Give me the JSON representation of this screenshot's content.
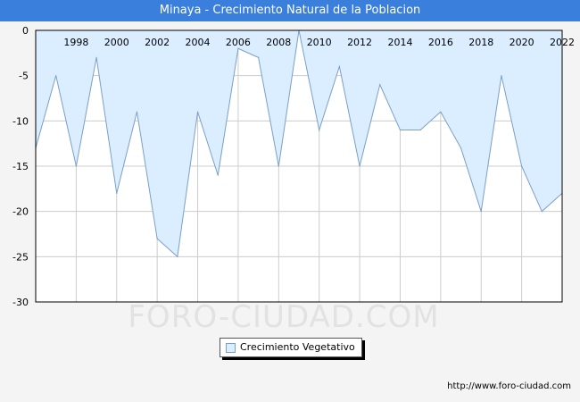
{
  "header": {
    "title": "Minaya - Crecimiento Natural de la Poblacion"
  },
  "watermark": "FORO-CIUDAD.COM",
  "source_url": "http://www.foro-ciudad.com",
  "colors": {
    "title_bar": "#3a7fdb",
    "area_fill": "#dbeeff",
    "line": "#7a9fc8",
    "grid": "#cccccc"
  },
  "chart_data": {
    "type": "area",
    "title": "Minaya - Crecimiento Natural de la Poblacion",
    "xlabel": "",
    "ylabel": "",
    "xlim": [
      1996,
      2022
    ],
    "ylim": [
      -30,
      0
    ],
    "x_ticks": [
      1998,
      2000,
      2002,
      2004,
      2006,
      2008,
      2010,
      2012,
      2014,
      2016,
      2018,
      2020,
      2022
    ],
    "y_ticks": [
      0,
      -5,
      -10,
      -15,
      -20,
      -25,
      -30
    ],
    "grid": true,
    "legend_position": "bottom-center",
    "series": [
      {
        "name": "Crecimiento Vegetativo",
        "x": [
          1996,
          1997,
          1998,
          1999,
          2000,
          2001,
          2002,
          2003,
          2004,
          2005,
          2006,
          2007,
          2008,
          2009,
          2010,
          2011,
          2012,
          2013,
          2014,
          2015,
          2016,
          2017,
          2018,
          2019,
          2020,
          2021,
          2022
        ],
        "values": [
          -13,
          -5,
          -15,
          -3,
          -18,
          -9,
          -23,
          -25,
          -9,
          -16,
          -2,
          -3,
          -15,
          0,
          -11,
          -4,
          -15,
          -6,
          -11,
          -11,
          -9,
          -13,
          -20,
          -5,
          -15,
          -20,
          -18
        ]
      }
    ]
  }
}
